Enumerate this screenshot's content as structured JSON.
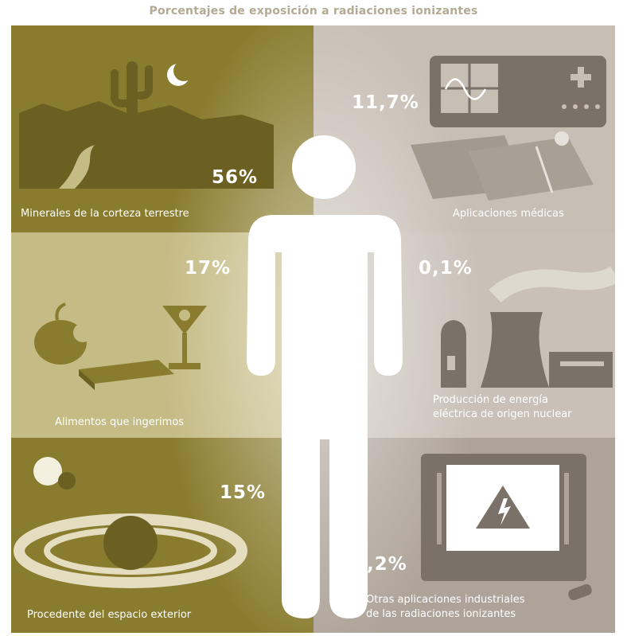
{
  "title": "Porcentajes de exposición a radiaciones ionizantes",
  "chart_data": {
    "type": "pie",
    "title": "Porcentajes de exposición a radiaciones ionizantes",
    "unit": "%",
    "categories": [
      "Minerales de la corteza terrestre",
      "Aplicaciones médicas",
      "Alimentos que ingerimos",
      "Producción de energía eléctrica de origen nuclear",
      "Procedente del espacio exterior",
      "Otras aplicaciones industriales de las radiaciones ionizantes"
    ],
    "values": [
      56,
      11.7,
      17,
      0.1,
      15,
      0.2
    ],
    "value_labels": [
      "56%",
      "11,7%",
      "17%",
      "0,1%",
      "15%",
      "0,2%"
    ]
  },
  "panels": {
    "minerales": {
      "label": "Minerales de la corteza terrestre",
      "value": "56%"
    },
    "medicas": {
      "label": "Aplicaciones médicas",
      "value": "11,7%"
    },
    "alimentos": {
      "label": "Alimentos que ingerimos",
      "value": "17%"
    },
    "energia": {
      "label_line1": "Producción de energía",
      "label_line2": "eléctrica de origen nuclear",
      "value": "0,1%"
    },
    "espacio": {
      "label": "Procedente del espacio exterior",
      "value": "15%"
    },
    "industriales": {
      "label_line1": "Otras aplicaciones industriales",
      "label_line2": "de las radiaciones ionizantes",
      "value": "0,2%"
    }
  },
  "colors": {
    "title": "#b3aa93",
    "olive_dark": "#8a7c2f",
    "olive_light": "#c5bb85",
    "grey_light": "#c7beb4",
    "grey_mid": "#ada398",
    "grey_dark": "#7a7168",
    "figure": "#ffffff"
  }
}
